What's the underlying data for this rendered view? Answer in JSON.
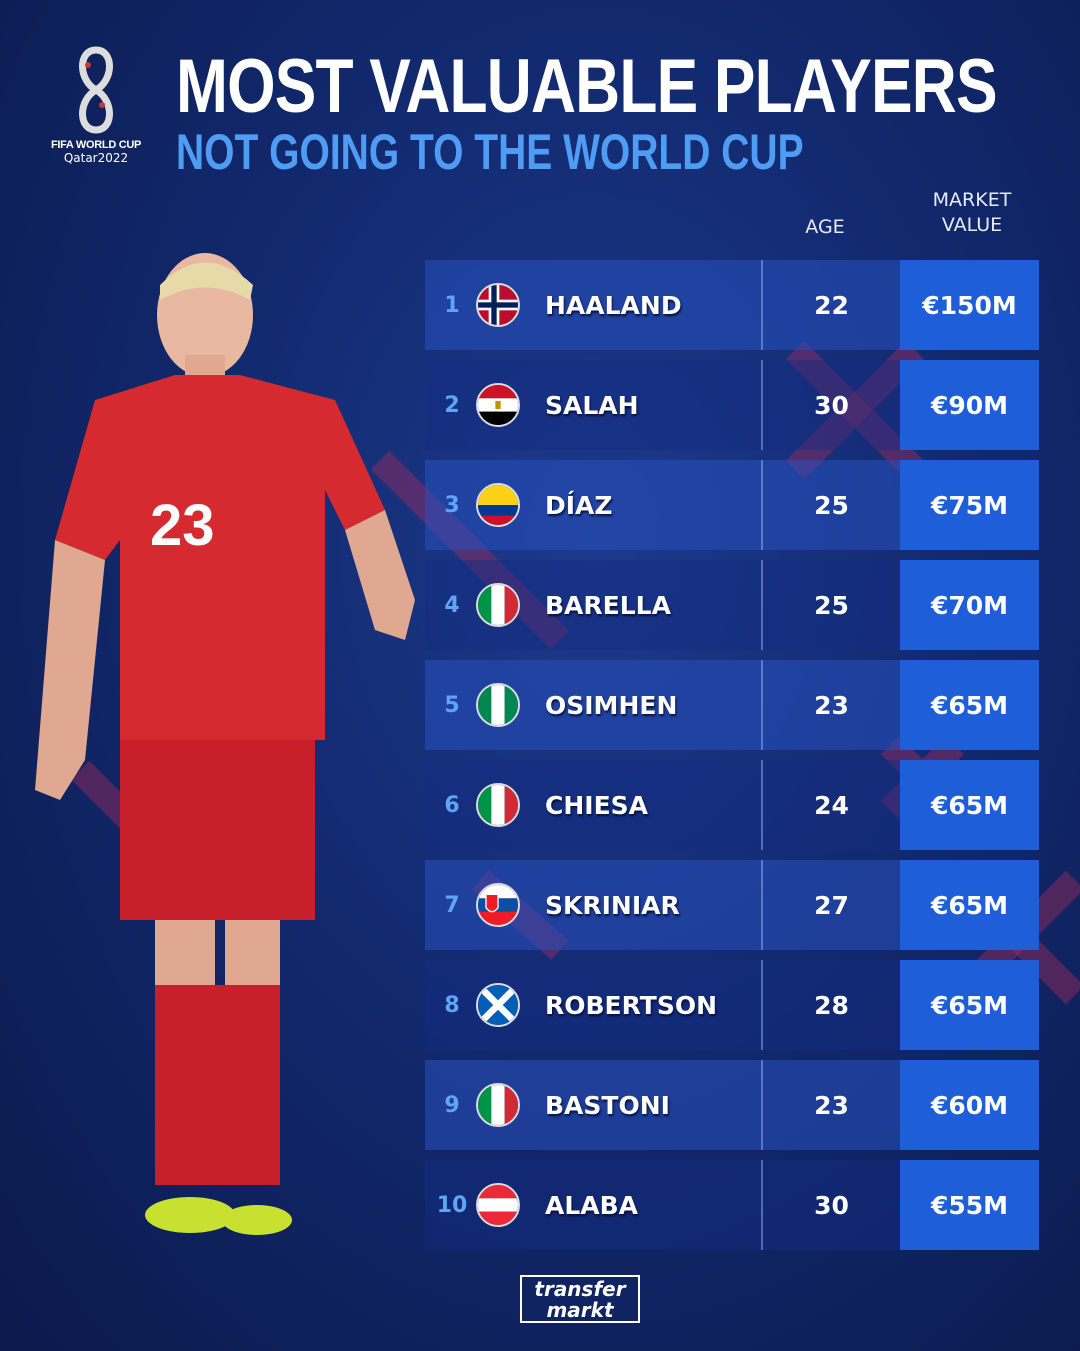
{
  "logo": {
    "line1": "FIFA WORLD CUP",
    "line2": "Qatar2022"
  },
  "header": {
    "title": "MOST VALUABLE PLAYERS",
    "subtitle": "NOT GOING TO THE WORLD CUP"
  },
  "columns": {
    "age": "AGE",
    "market_value_1": "MARKET",
    "market_value_2": "VALUE"
  },
  "players": [
    {
      "rank": "1",
      "flag": "norway",
      "name": "HAALAND",
      "age": "22",
      "value": "€150M"
    },
    {
      "rank": "2",
      "flag": "egypt",
      "name": "SALAH",
      "age": "30",
      "value": "€90M"
    },
    {
      "rank": "3",
      "flag": "colombia",
      "name": "DÍAZ",
      "age": "25",
      "value": "€75M"
    },
    {
      "rank": "4",
      "flag": "italy",
      "name": "BARELLA",
      "age": "25",
      "value": "€70M"
    },
    {
      "rank": "5",
      "flag": "nigeria",
      "name": "OSIMHEN",
      "age": "23",
      "value": "€65M"
    },
    {
      "rank": "6",
      "flag": "italy",
      "name": "CHIESA",
      "age": "24",
      "value": "€65M"
    },
    {
      "rank": "7",
      "flag": "slovakia",
      "name": "SKRINIAR",
      "age": "27",
      "value": "€65M"
    },
    {
      "rank": "8",
      "flag": "scotland",
      "name": "ROBERTSON",
      "age": "28",
      "value": "€65M"
    },
    {
      "rank": "9",
      "flag": "italy",
      "name": "BASTONI",
      "age": "23",
      "value": "€60M"
    },
    {
      "rank": "10",
      "flag": "austria",
      "name": "ALABA",
      "age": "30",
      "value": "€55M"
    }
  ],
  "footer": {
    "brand_line1": "transfer",
    "brand_line2": "markt"
  },
  "colors": {
    "value_cell": "#1e5ed8",
    "subtitle": "#4f9cf5",
    "rank": "#5fa4f5",
    "accent_x": "#b0305a"
  }
}
